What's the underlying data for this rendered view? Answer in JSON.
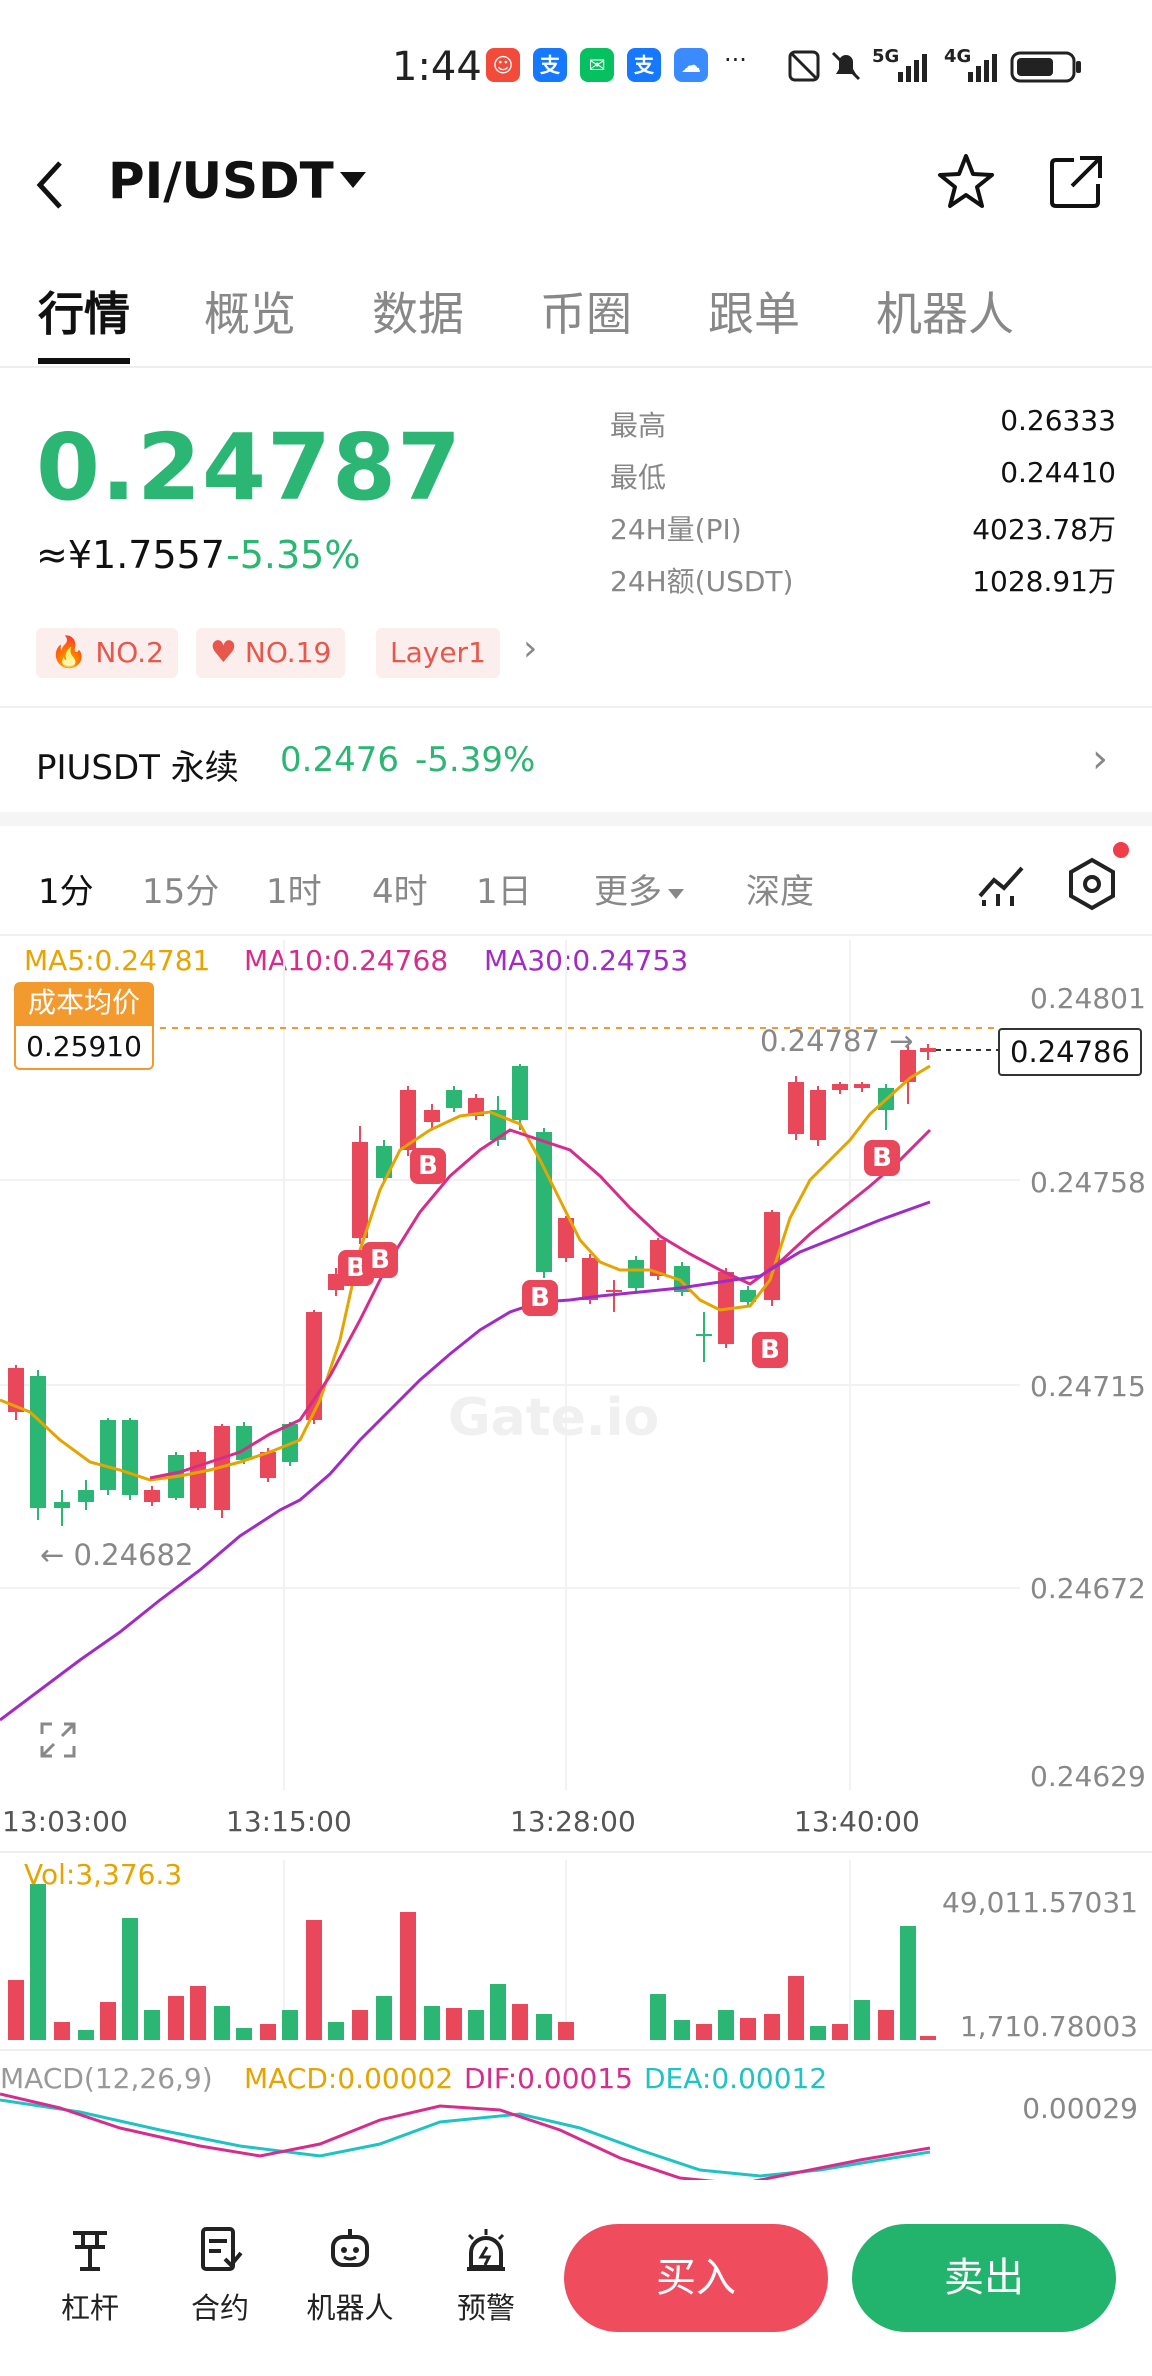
{
  "status_bar": {
    "time": "1:44",
    "dots": "···",
    "network": "5G",
    "network2": "4G"
  },
  "header": {
    "title": "PI/USDT"
  },
  "tabs": [
    "行情",
    "概览",
    "数据",
    "币圈",
    "跟单",
    "机器人"
  ],
  "ticker": {
    "price": "0.24787",
    "cny": "≈¥1.7557",
    "change": "-5.35%",
    "tags": [
      "NO.2",
      "NO.19",
      "Layer1"
    ],
    "stats": [
      {
        "label": "最高",
        "value": "0.26333"
      },
      {
        "label": "最低",
        "value": "0.24410"
      },
      {
        "label": "24H量(PI)",
        "value": "4023.78万"
      },
      {
        "label": "24H额(USDT)",
        "value": "1028.91万"
      }
    ]
  },
  "perpetual": {
    "label": "PIUSDT 永续",
    "price": "0.2476",
    "change": "-5.39%"
  },
  "timeframes": [
    "1分",
    "15分",
    "1时",
    "4时",
    "1日",
    "更多",
    "深度"
  ],
  "chart": {
    "ma5": "MA5:0.24781",
    "ma10": "MA10:0.24768",
    "ma30": "MA30:0.24753",
    "cost_label": "成本均价",
    "cost_value": "0.25910",
    "current_price": "0.24786",
    "high_marker": "0.24787 →",
    "low_marker": "← 0.24682",
    "watermark": "Gate.io",
    "buy_badge": "B",
    "y_axis": [
      "0.24801",
      "0.24758",
      "0.24715",
      "0.24672",
      "0.24629"
    ],
    "x_axis": [
      "13:03:00",
      "13:15:00",
      "13:28:00",
      "13:40:00"
    ],
    "colors": {
      "up": "#2bb673",
      "down": "#e8485a",
      "ma5": "#e6a400",
      "ma10": "#d62d8c",
      "ma30": "#a02bc6"
    }
  },
  "volume": {
    "label": "Vol:3,376.3",
    "y_axis": [
      "49,011.57031",
      "1,710.78003"
    ]
  },
  "macd": {
    "title": "MACD(12,26,9)",
    "macd": "MACD:0.00002",
    "dif": "DIF:0.00015",
    "dea": "DEA:0.00012",
    "y_axis": "0.00029"
  },
  "bottom_nav": {
    "items": [
      "杠杆",
      "合约",
      "机器人",
      "预警"
    ],
    "buy": "买入",
    "sell": "卖出"
  }
}
